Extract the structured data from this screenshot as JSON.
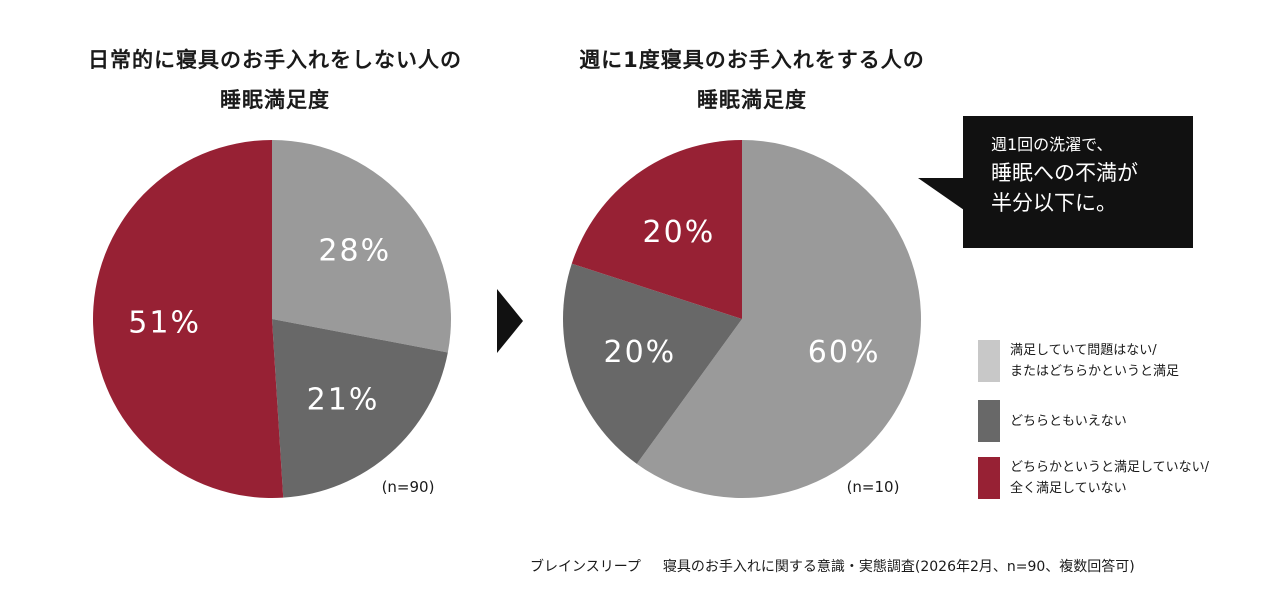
{
  "chart_data": [
    {
      "type": "pie",
      "title": [
        "日常的に寝具のお手入れをしない人の",
        "睡眠満足度"
      ],
      "sample": "(n=90)",
      "slices": [
        {
          "category": "satisfied",
          "value": 28,
          "label": "28%",
          "color": "#9a9a9a"
        },
        {
          "category": "neutral",
          "value": 21,
          "label": "21%",
          "color": "#686868"
        },
        {
          "category": "dissatisfied",
          "value": 51,
          "label": "51%",
          "color": "#972134"
        }
      ]
    },
    {
      "type": "pie",
      "title": [
        "週に1度寝具のお手入れをする人の",
        "睡眠満足度"
      ],
      "sample": "(n=10)",
      "slices": [
        {
          "category": "satisfied",
          "value": 60,
          "label": "60%",
          "color": "#9a9a9a"
        },
        {
          "category": "neutral",
          "value": 20,
          "label": "20%",
          "color": "#686868"
        },
        {
          "category": "dissatisfied",
          "value": 20,
          "label": "20%",
          "color": "#972134"
        }
      ]
    }
  ],
  "callout": {
    "line1": "週1回の洗濯で、",
    "line2": "睡眠への不満が",
    "line3": "半分以下に。"
  },
  "legend": [
    {
      "lines": [
        "満足していて問題はない/",
        "またはどちらかというと満足"
      ],
      "color": "#c8c8c8"
    },
    {
      "lines": [
        "どちらともいえない"
      ],
      "color": "#686868"
    },
    {
      "lines": [
        "どちらかというと満足していない/",
        "全く満足していない"
      ],
      "color": "#972134"
    }
  ],
  "footer": {
    "source": "ブレインスリープ",
    "survey": "寝具のお手入れに関する意識・実態調査(2026年2月、n=90、複数回答可)"
  }
}
